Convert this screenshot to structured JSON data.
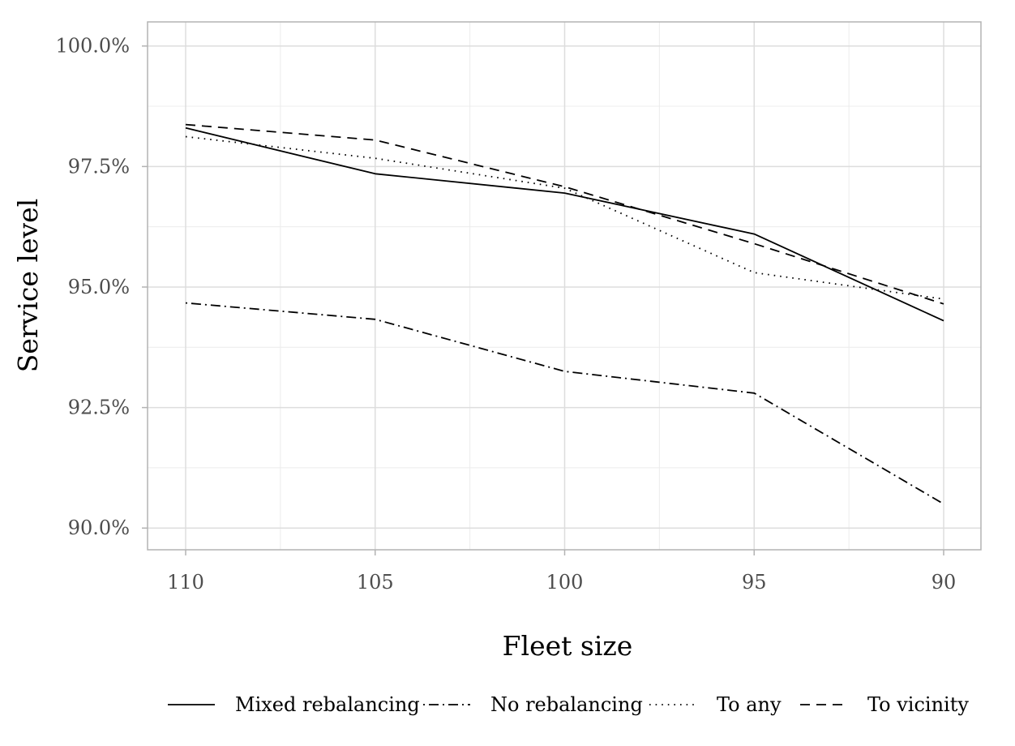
{
  "chart_data": {
    "type": "line",
    "title": "",
    "xlabel": "Fleet size",
    "ylabel": "Service level",
    "x": [
      110,
      105,
      100,
      95,
      90
    ],
    "x_ticks": [
      "110",
      "105",
      "100",
      "95",
      "90"
    ],
    "x_reversed": true,
    "y_ticks": [
      "90.0%",
      "92.5%",
      "95.0%",
      "97.5%",
      "100.0%"
    ],
    "y_tick_values": [
      90.0,
      92.5,
      95.0,
      97.5,
      100.0
    ],
    "ylim": [
      89.55,
      100.5
    ],
    "grid": true,
    "legend_position": "bottom",
    "series": [
      {
        "name": "Mixed rebalancing",
        "dash": "solid",
        "values": [
          98.3,
          97.35,
          96.95,
          96.1,
          94.3
        ]
      },
      {
        "name": "No rebalancing",
        "dash": "dotdash",
        "values": [
          94.67,
          94.33,
          93.25,
          92.8,
          90.5
        ]
      },
      {
        "name": "To any",
        "dash": "dotted",
        "values": [
          98.12,
          97.67,
          97.05,
          95.3,
          94.75
        ]
      },
      {
        "name": "To vicinity",
        "dash": "dashed",
        "values": [
          98.37,
          98.05,
          97.08,
          95.9,
          94.65
        ]
      }
    ]
  },
  "colors": {
    "line": "#000000",
    "grid_major": "#dddddd",
    "grid_minor": "#ececec",
    "panel_border": "#b3b3b3",
    "tick_text": "#4d4d4d"
  }
}
